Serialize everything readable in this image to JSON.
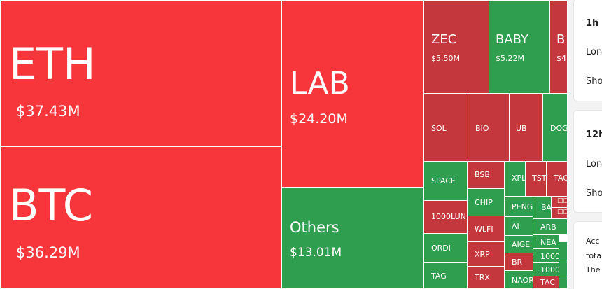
{
  "treemap": {
    "eth": {
      "symbol": "ETH",
      "amount": "$37.43M"
    },
    "btc": {
      "symbol": "BTC",
      "amount": "$36.29M"
    },
    "lab": {
      "symbol": "LAB",
      "amount": "$24.20M"
    },
    "others": {
      "symbol": "Others",
      "amount": "$13.01M"
    },
    "zec": {
      "symbol": "ZEC",
      "amount": "$5.50M"
    },
    "baby": {
      "symbol": "BABY",
      "amount": "$5.22M"
    },
    "b_partial": {
      "symbol": "B",
      "amount": "$4"
    },
    "small": {
      "sol": "SOL",
      "bio": "BIO",
      "ub": "UB",
      "dog": "DOG",
      "space": "SPACE",
      "bsb": "BSB",
      "xpl": "XPL",
      "tst": "TST",
      "tac": "TAC",
      "lun": "1000LUN",
      "chip": "CHIP",
      "peng": "PENG",
      "ba": "BA",
      "cn1": "□□",
      "wlfi": "WLFI",
      "ai": "AI",
      "arb": "ARB",
      "cn2": "□□",
      "ordi": "ORDI",
      "aige": "AIGE",
      "nea": "NEA",
      "xrp": "XRP",
      "br": "BR",
      "k1": "1000",
      "k2": "1000",
      "tag": "TAG",
      "trx": "TRX",
      "naor": "NAOR",
      "tac2": "TAC"
    }
  },
  "sidebar": {
    "card1": {
      "title": "1h",
      "row1": "Lon",
      "row2": "Sho"
    },
    "card2": {
      "title": "12h",
      "row1": "Lon",
      "row2": "Sho"
    },
    "card3": {
      "row1": "Acc",
      "row2": "tota",
      "row3": "The"
    }
  },
  "colors": {
    "red": "#f6363b",
    "dark_red": "#c4373c",
    "green": "#2f9e4f"
  }
}
